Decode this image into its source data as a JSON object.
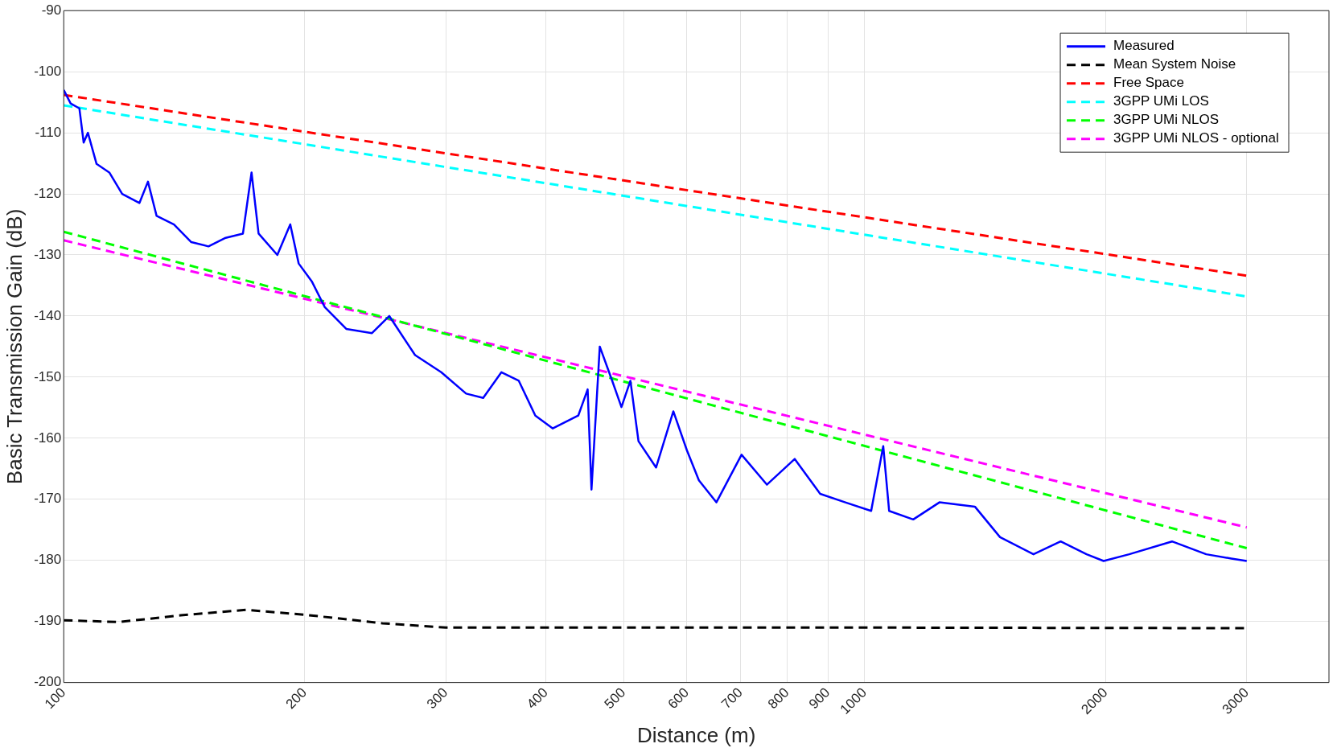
{
  "chart_data": {
    "type": "line",
    "xlabel": "Distance (m)",
    "ylabel": "Basic Transmission Gain (dB)",
    "log": "x",
    "grid": true,
    "legend": "top right",
    "xlim": [
      100,
      3800
    ],
    "xticks": [
      100,
      200,
      300,
      400,
      500,
      600,
      700,
      800,
      900,
      1000,
      2000,
      3000
    ],
    "ylim": [
      -200,
      -90
    ],
    "yticks": [
      -200,
      -190,
      -180,
      -170,
      -160,
      -150,
      -140,
      -130,
      -120,
      -110,
      -100,
      -90
    ],
    "series": [
      {
        "name": "Measured",
        "color": "#0000ff",
        "line_style": "solid",
        "x": [
          100,
          102,
          104.6,
          105.9,
          107.2,
          109.9,
          114,
          118.3,
          124.3,
          127.4,
          130.6,
          137.3,
          144.3,
          151.6,
          159.3,
          167.4,
          171.6,
          175.1,
          184.8,
          191.8,
          196.5,
          204,
          211.7,
          225.3,
          242.6,
          255,
          274.6,
          296,
          318,
          334,
          352,
          370,
          388,
          408,
          439,
          451,
          456,
          467,
          484,
          497,
          510,
          522,
          549,
          577,
          600,
          621,
          653,
          702,
          755,
          818,
          880,
          946,
          1019,
          1055,
          1073,
          1150,
          1240,
          1373,
          1476,
          1625,
          1757,
          1893,
          1988,
          2140,
          2420,
          2670,
          2870,
          3000
        ],
        "values": [
          -103,
          -105.2,
          -106,
          -111.6,
          -110,
          -115.1,
          -116.5,
          -120,
          -121.5,
          -118,
          -123.6,
          -125,
          -127.9,
          -128.6,
          -127.2,
          -126.5,
          -116.5,
          -126.5,
          -130,
          -125,
          -131.4,
          -134.3,
          -138.5,
          -142.1,
          -142.8,
          -140,
          -146.4,
          -149.2,
          -152.7,
          -153.4,
          -149.2,
          -150.6,
          -156.3,
          -158.4,
          -156.3,
          -152,
          -168.4,
          -145,
          -150.6,
          -154.9,
          -150.6,
          -160.5,
          -164.8,
          -155.6,
          -162,
          -166.9,
          -170.5,
          -162.7,
          -167.6,
          -163.4,
          -169.1,
          -170.5,
          -171.9,
          -161.3,
          -171.9,
          -173.3,
          -170.5,
          -171.2,
          -176.2,
          -179,
          -176.9,
          -179,
          -180.1,
          -179,
          -176.9,
          -179,
          -179.7,
          -180.1
        ]
      },
      {
        "name": "Mean System Noise",
        "color": "#000000",
        "line_style": "dashed",
        "x": [
          100,
          117,
          140,
          169,
          200,
          250,
          300,
          500,
          1000,
          3000
        ],
        "values": [
          -189.8,
          -190.1,
          -189,
          -188.1,
          -188.9,
          -190.3,
          -191,
          -191,
          -191,
          -191.1
        ]
      },
      {
        "name": "Free Space",
        "color": "#ff0000",
        "line_style": "dashed",
        "x": [
          100,
          3000
        ],
        "values": [
          -103.8,
          -133.4
        ]
      },
      {
        "name": "3GPP UMi LOS",
        "color": "#00ffff",
        "line_style": "dashed",
        "x": [
          100,
          3000
        ],
        "values": [
          -105.5,
          -136.8
        ]
      },
      {
        "name": "3GPP UMi NLOS",
        "color": "#00ff00",
        "line_style": "dashed",
        "x": [
          100,
          3000
        ],
        "values": [
          -126.2,
          -178.0
        ]
      },
      {
        "name": "3GPP UMi NLOS - optional",
        "color": "#ff00ff",
        "line_style": "dashed",
        "x": [
          100,
          3000
        ],
        "values": [
          -127.6,
          -174.6
        ]
      }
    ]
  }
}
